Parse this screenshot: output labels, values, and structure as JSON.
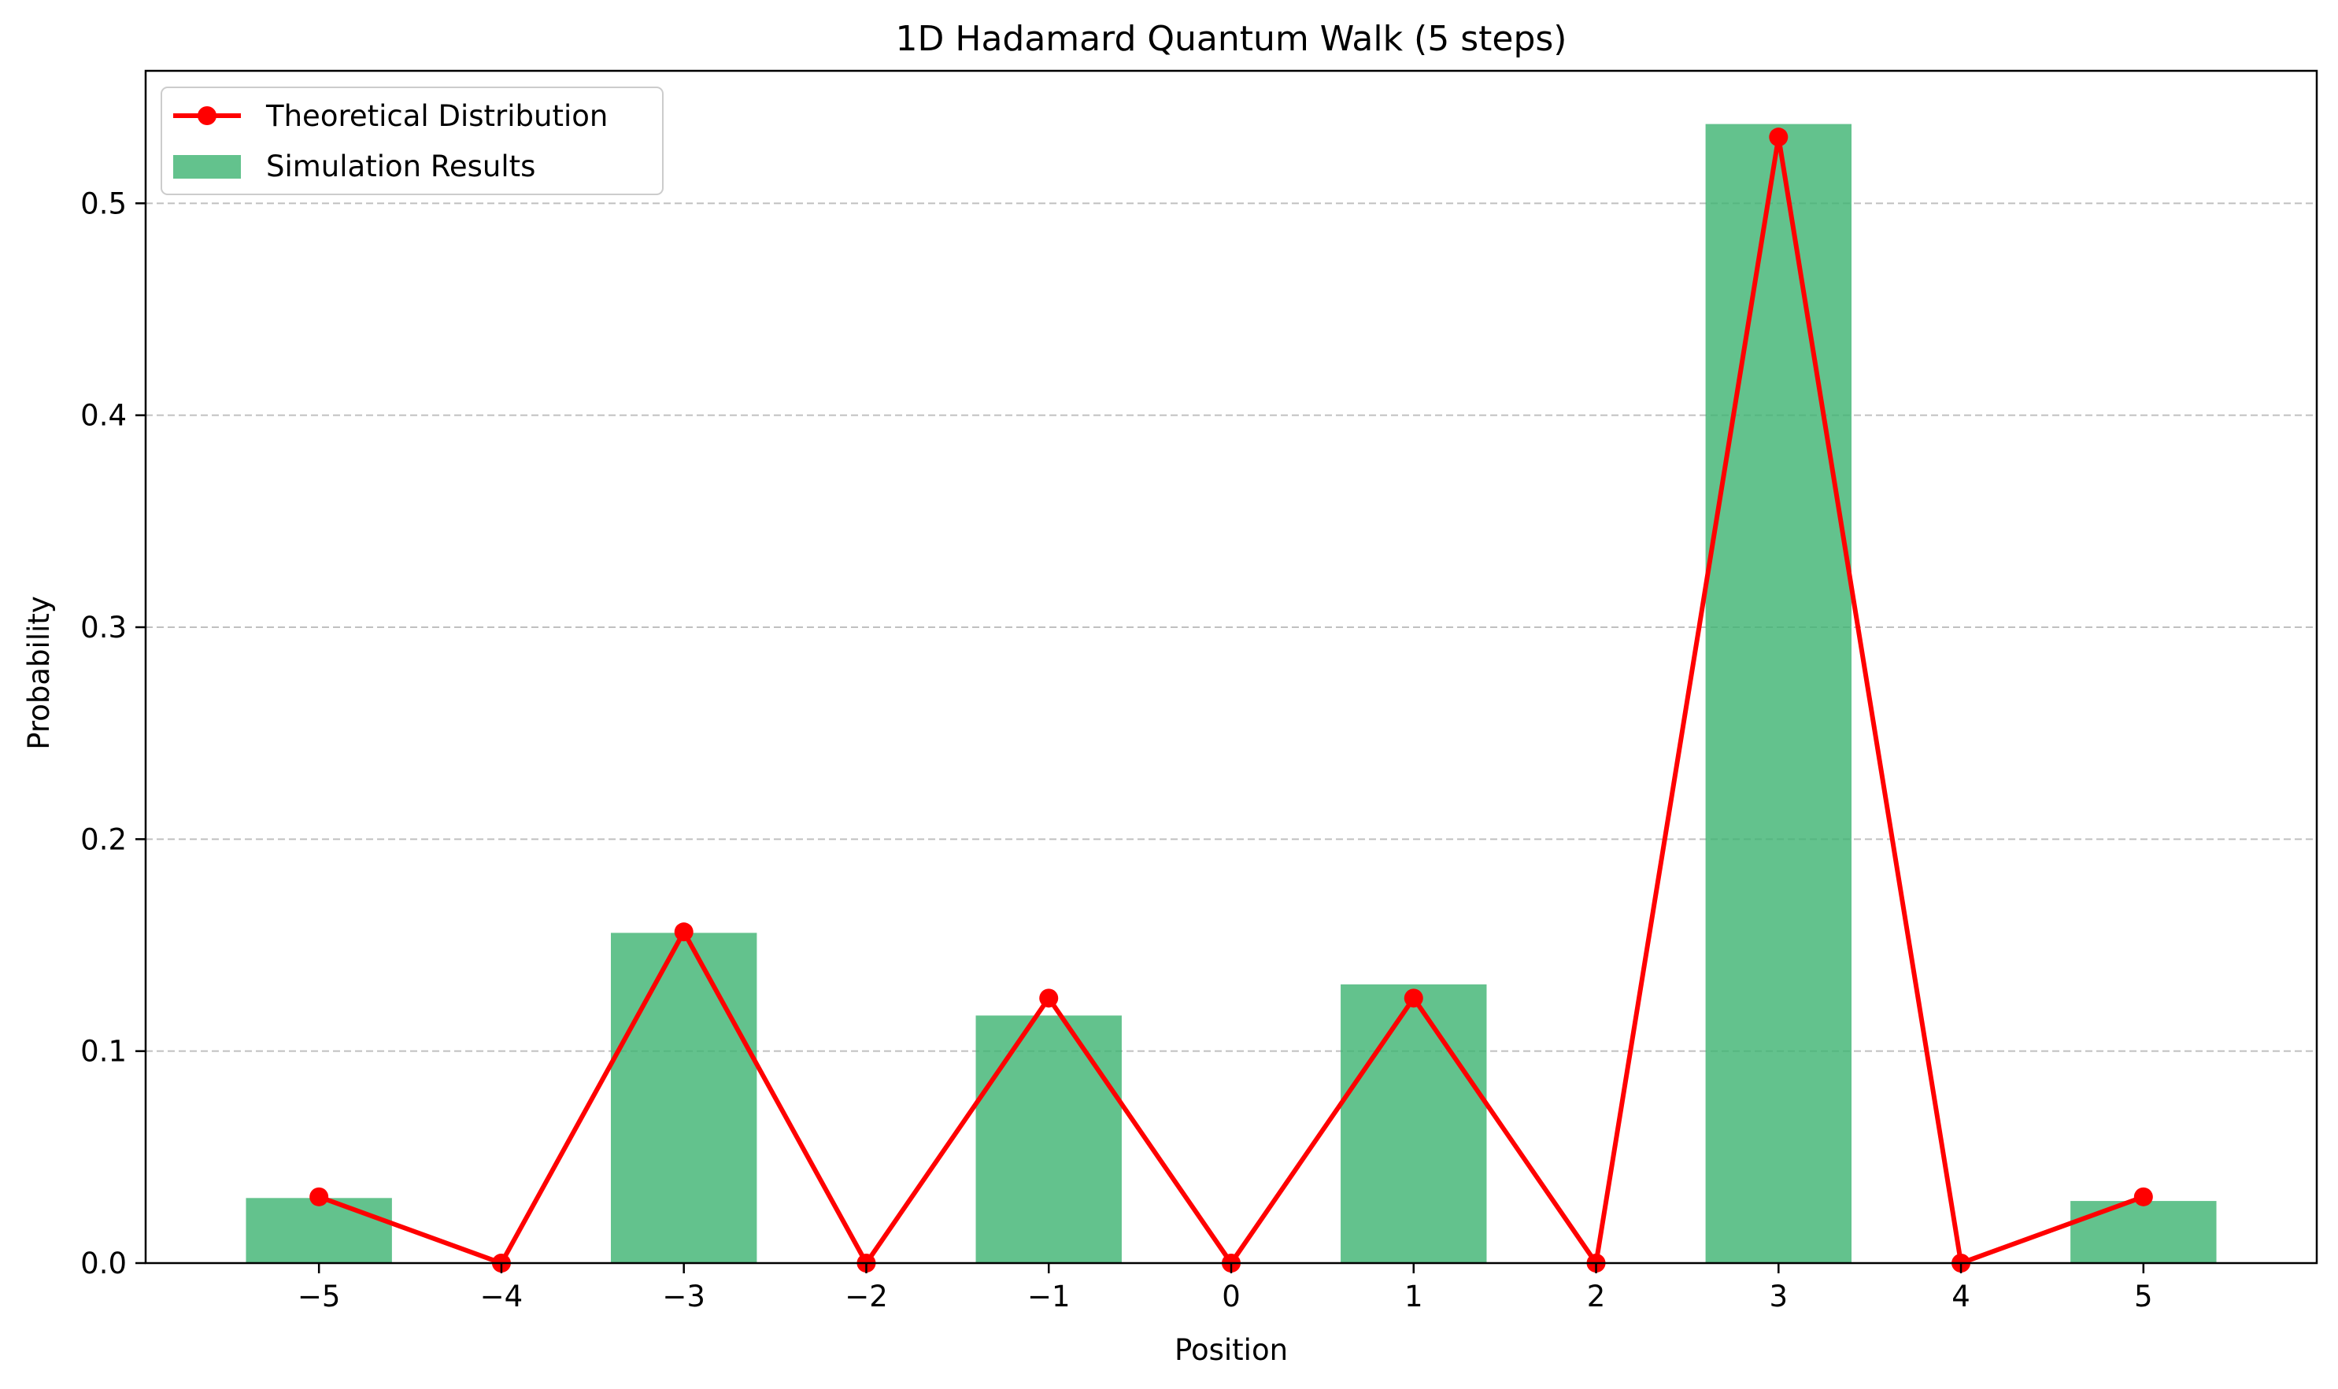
{
  "chart_data": {
    "type": "bar",
    "title": "1D Hadamard Quantum Walk (5 steps)",
    "xlabel": "Position",
    "ylabel": "Probability",
    "categories": [
      -5,
      -4,
      -3,
      -2,
      -1,
      0,
      1,
      2,
      3,
      4,
      5
    ],
    "x_tick_labels": [
      "−5",
      "−4",
      "−3",
      "−2",
      "−1",
      "0",
      "1",
      "2",
      "3",
      "4",
      "5"
    ],
    "y_ticks": [
      0.0,
      0.1,
      0.2,
      0.3,
      0.4,
      0.5
    ],
    "y_tick_labels": [
      "0.0",
      "0.1",
      "0.2",
      "0.3",
      "0.4",
      "0.5"
    ],
    "xlim": [
      -5.95,
      5.95
    ],
    "ylim": [
      0,
      0.5625
    ],
    "grid": "y-dashed",
    "legend": "upper-left",
    "series": [
      {
        "name": "Theoretical Distribution",
        "kind": "line",
        "color": "#ff0000",
        "marker": "circle",
        "x": [
          -5,
          -4,
          -3,
          -2,
          -1,
          0,
          1,
          2,
          3,
          4,
          5
        ],
        "values": [
          0.03125,
          0,
          0.15625,
          0,
          0.125,
          0,
          0.125,
          0,
          0.53125,
          0,
          0.03125
        ]
      },
      {
        "name": "Simulation Results",
        "kind": "bar",
        "color": "#3cb371",
        "x": [
          -5,
          -4,
          -3,
          -2,
          -1,
          0,
          1,
          2,
          3,
          4,
          5
        ],
        "values": [
          0.0307,
          0,
          0.1558,
          0,
          0.1168,
          0,
          0.1315,
          0,
          0.5374,
          0,
          0.0293
        ]
      }
    ]
  }
}
